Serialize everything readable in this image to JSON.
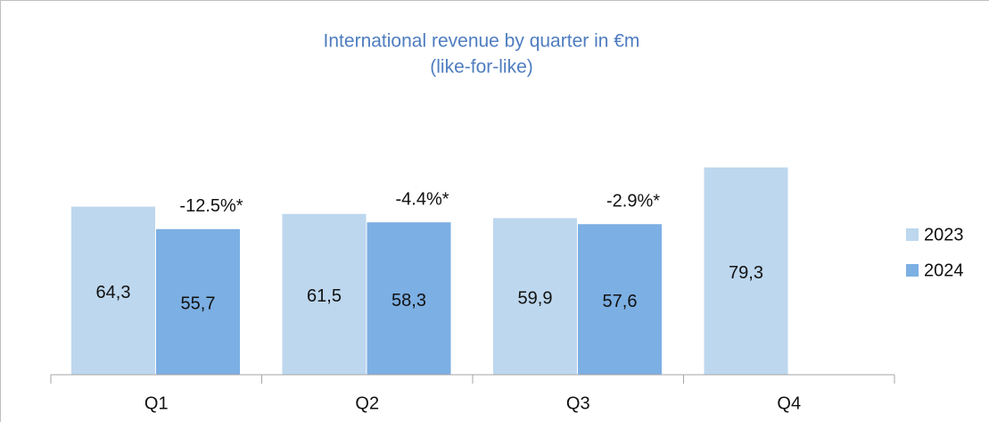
{
  "chart_data": {
    "type": "bar",
    "title": "International revenue by quarter in €m",
    "subtitle": "(like-for-like)",
    "categories": [
      "Q1",
      "Q2",
      "Q3",
      "Q4"
    ],
    "series": [
      {
        "name": "2023",
        "color": "#bdd7ee",
        "values": [
          64.3,
          61.5,
          59.9,
          79.3
        ],
        "value_labels": [
          "64,3",
          "61,5",
          "59,9",
          "79,3"
        ]
      },
      {
        "name": "2024",
        "color": "#7cafe3",
        "values": [
          55.7,
          58.3,
          57.6,
          null
        ],
        "value_labels": [
          "55,7",
          "58,3",
          "57,6",
          null
        ]
      }
    ],
    "annotations": [
      "-12.5%*",
      "-4.4%*",
      "-2.9%*",
      null
    ],
    "ylim": [
      0,
      100
    ],
    "legend": "right"
  }
}
